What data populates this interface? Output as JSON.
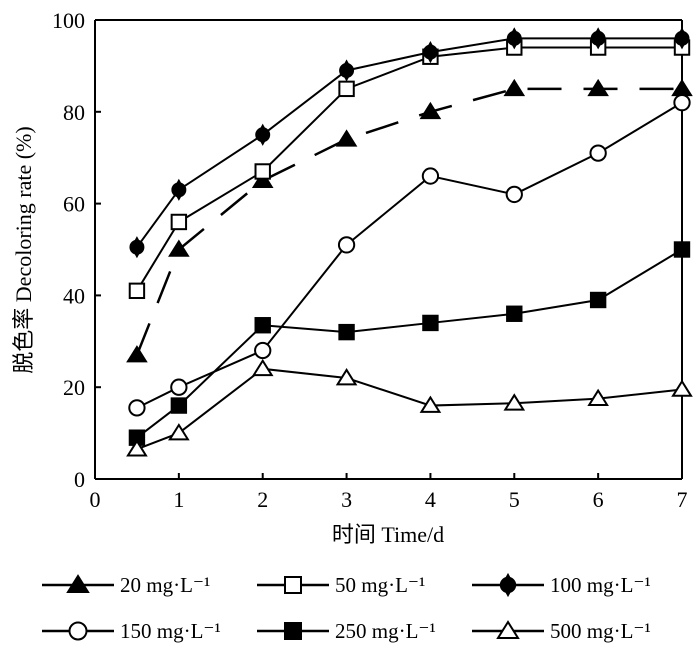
{
  "colors": {
    "ink": "#000000",
    "background": "#ffffff"
  },
  "chart_data": {
    "type": "line",
    "title": "",
    "xlabel": "时间 Time/d",
    "ylabel": "脱色率  Decoloring rate (%)",
    "xlim": [
      0,
      7
    ],
    "ylim": [
      0,
      100
    ],
    "x_ticks": [
      0,
      1,
      2,
      3,
      4,
      5,
      6,
      7
    ],
    "y_ticks": [
      0,
      20,
      40,
      60,
      80,
      100
    ],
    "grid": false,
    "legend_position": "bottom",
    "series": [
      {
        "name": "20 mg·L⁻¹",
        "marker": "triangle",
        "filled": true,
        "line_style": "dashed",
        "x": [
          0.5,
          1,
          2,
          3,
          4,
          5,
          6,
          7
        ],
        "y": [
          27,
          50,
          65,
          74,
          80,
          85,
          85,
          85
        ]
      },
      {
        "name": "50 mg·L⁻¹",
        "marker": "square",
        "filled": false,
        "line_style": "solid",
        "x": [
          0.5,
          1,
          2,
          3,
          4,
          5,
          6,
          7
        ],
        "y": [
          41,
          56,
          67,
          85,
          92,
          94,
          94,
          94
        ]
      },
      {
        "name": "100 mg·L⁻¹",
        "marker": "diamond-circle",
        "filled": true,
        "line_style": "solid",
        "x": [
          0.5,
          1,
          2,
          3,
          4,
          5,
          6,
          7
        ],
        "y": [
          50.5,
          63,
          75,
          89,
          93,
          96,
          96,
          96
        ]
      },
      {
        "name": "150 mg·L⁻¹",
        "marker": "circle",
        "filled": false,
        "line_style": "solid",
        "x": [
          0.5,
          1,
          2,
          3,
          4,
          5,
          6,
          7
        ],
        "y": [
          15.5,
          20,
          28,
          51,
          66,
          62,
          71,
          82
        ]
      },
      {
        "name": "250 mg·L⁻¹",
        "marker": "square",
        "filled": true,
        "line_style": "solid",
        "x": [
          0.5,
          1,
          2,
          3,
          4,
          5,
          6,
          7
        ],
        "y": [
          9,
          16,
          33.5,
          32,
          34,
          36,
          39,
          50
        ]
      },
      {
        "name": "500 mg·L⁻¹",
        "marker": "triangle",
        "filled": false,
        "line_style": "solid",
        "x": [
          0.5,
          1,
          2,
          3,
          4,
          5,
          6,
          7
        ],
        "y": [
          6.5,
          10,
          24,
          22,
          16,
          16.5,
          17.5,
          19.5
        ]
      }
    ]
  }
}
